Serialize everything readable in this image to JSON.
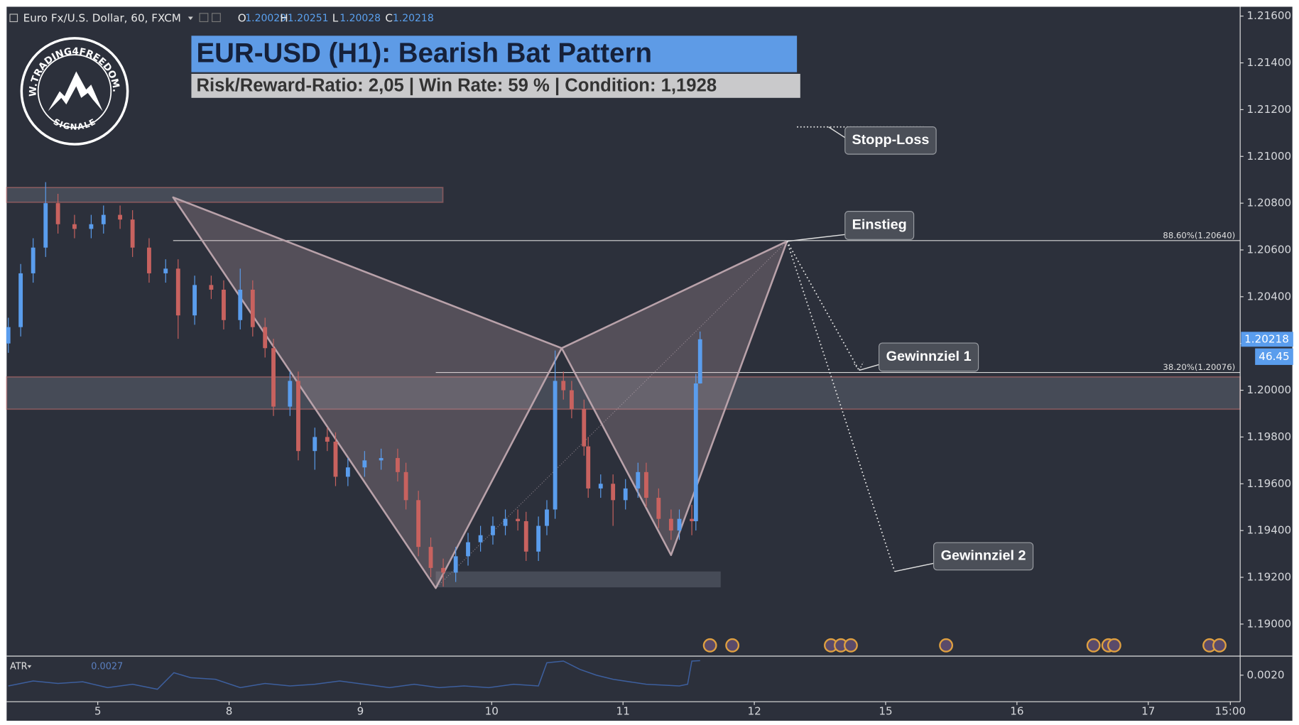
{
  "chart_data": {
    "type": "candlestick",
    "symbol": "Euro Fx/U.S. Dollar, 60, FXCM",
    "title": "EUR-USD (H1): Bearish Bat Pattern",
    "subtitle": "Risk/Reward-Ratio: 2,05 | Win Rate: 59 % | Condition: 1,1928",
    "ohlc_labels": [
      "O",
      "H",
      "L",
      "C"
    ],
    "x": [
      -0.681,
      -0.587,
      -0.492,
      -0.397,
      -0.303,
      -0.177,
      -0.05,
      0.044,
      0.17,
      0.265,
      0.391,
      0.517,
      0.612,
      0.738,
      0.864,
      0.959,
      1.085,
      1.18,
      1.274,
      1.338,
      1.464,
      1.527,
      1.653,
      1.748,
      1.811,
      1.905,
      2.032,
      2.158,
      2.284,
      2.347,
      2.442,
      2.536,
      2.631,
      2.726,
      2.82,
      2.915,
      3.009,
      3.104,
      3.199,
      3.262,
      3.356,
      3.42,
      3.483,
      3.546,
      3.609,
      3.703,
      3.735,
      3.83,
      3.924,
      4.019,
      4.114,
      4.177,
      4.271,
      4.366,
      4.429,
      4.524,
      4.555,
      4.587
    ],
    "open": [
      1.202,
      1.2027,
      1.205,
      1.2061,
      1.208,
      1.2071,
      1.2069,
      1.2071,
      1.2075,
      1.2073,
      1.2061,
      1.205,
      1.2052,
      1.2032,
      1.2045,
      1.2043,
      1.203,
      1.2043,
      1.2027,
      1.2018,
      1.1993,
      1.2004,
      1.1974,
      1.198,
      1.1978,
      1.1963,
      1.1967,
      1.197,
      1.1971,
      1.1965,
      1.1953,
      1.1933,
      1.1924,
      1.1922,
      1.1929,
      1.1935,
      1.1938,
      1.1942,
      1.1945,
      1.1944,
      1.1931,
      1.1942,
      1.1949,
      1.2004,
      1.2,
      1.1992,
      1.1976,
      1.1958,
      1.196,
      1.1953,
      1.1958,
      1.1965,
      1.1954,
      1.1945,
      1.194,
      1.1945,
      1.1944,
      1.20029
    ],
    "high": [
      1.2031,
      1.2054,
      1.2065,
      1.2089,
      1.2084,
      1.2075,
      1.2075,
      1.2079,
      1.2079,
      1.2077,
      1.2065,
      1.2056,
      1.2056,
      1.2049,
      1.2049,
      1.2047,
      1.2052,
      1.2047,
      1.2031,
      1.2022,
      1.2008,
      1.2008,
      1.1984,
      1.1984,
      1.1982,
      1.1971,
      1.1974,
      1.1975,
      1.1975,
      1.1969,
      1.1957,
      1.1937,
      1.1928,
      1.1933,
      1.1939,
      1.1942,
      1.1946,
      1.1949,
      1.1949,
      1.1948,
      1.1946,
      1.1953,
      1.2017,
      1.2008,
      1.2004,
      1.1996,
      1.198,
      1.1964,
      1.1964,
      1.1962,
      1.1969,
      1.1969,
      1.1958,
      1.1949,
      1.1949,
      1.1951,
      1.2007,
      1.20251
    ],
    "low": [
      1.2016,
      1.2023,
      1.2046,
      1.2057,
      1.2067,
      1.2065,
      1.2065,
      1.2067,
      1.2069,
      1.2057,
      1.2046,
      1.2046,
      1.2022,
      1.2028,
      1.2039,
      1.2026,
      1.2026,
      1.2023,
      1.2014,
      1.1989,
      1.1989,
      1.197,
      1.1966,
      1.1974,
      1.1959,
      1.1959,
      1.1963,
      1.1966,
      1.1961,
      1.1949,
      1.1929,
      1.192,
      1.1916,
      1.1918,
      1.1925,
      1.1931,
      1.1934,
      1.1938,
      1.194,
      1.1927,
      1.1927,
      1.1938,
      1.1945,
      1.1996,
      1.1988,
      1.1972,
      1.1954,
      1.1954,
      1.1942,
      1.1949,
      1.1954,
      1.195,
      1.1941,
      1.1936,
      1.1936,
      1.1938,
      1.194,
      1.20028
    ],
    "close": [
      1.2027,
      1.205,
      1.2061,
      1.208,
      1.2071,
      1.2069,
      1.2071,
      1.2075,
      1.2073,
      1.2061,
      1.205,
      1.2052,
      1.2032,
      1.2045,
      1.2043,
      1.203,
      1.2043,
      1.2027,
      1.2018,
      1.1993,
      1.2004,
      1.1974,
      1.198,
      1.1978,
      1.1963,
      1.1967,
      1.197,
      1.1971,
      1.1965,
      1.1953,
      1.1933,
      1.1924,
      1.1922,
      1.1929,
      1.1935,
      1.1938,
      1.1942,
      1.1945,
      1.1944,
      1.1931,
      1.1942,
      1.1949,
      1.2004,
      1.2,
      1.1992,
      1.1976,
      1.1958,
      1.196,
      1.1953,
      1.1958,
      1.1965,
      1.1954,
      1.1945,
      1.194,
      1.1945,
      1.1944,
      1.20029,
      1.20218
    ],
    "up_color": "#5a9ded",
    "down_color": "#c8625f",
    "xlim": [
      -0.694,
      8.7
    ],
    "xticks": [
      {
        "value": 0,
        "label": "5"
      },
      {
        "value": 1,
        "label": "8"
      },
      {
        "value": 2,
        "label": "9"
      },
      {
        "value": 3,
        "label": "10"
      },
      {
        "value": 4,
        "label": "11"
      },
      {
        "value": 5,
        "label": "12"
      },
      {
        "value": 6,
        "label": "15"
      },
      {
        "value": 7,
        "label": "16"
      },
      {
        "value": 8,
        "label": "17"
      },
      {
        "value": 8.625,
        "label": "15:00"
      }
    ],
    "ylim": [
      1.1887,
      1.2164
    ],
    "yticks": [
      {
        "value": 1.19,
        "label": "1.19000"
      },
      {
        "value": 1.192,
        "label": "1.19200"
      },
      {
        "value": 1.194,
        "label": "1.19400"
      },
      {
        "value": 1.196,
        "label": "1.19600"
      },
      {
        "value": 1.198,
        "label": "1.19800"
      },
      {
        "value": 1.2,
        "label": "1.20000"
      },
      {
        "value": 1.202,
        "label": "1.20200"
      },
      {
        "value": 1.204,
        "label": "1.20400"
      },
      {
        "value": 1.206,
        "label": "1.20600"
      },
      {
        "value": 1.208,
        "label": "1.20800"
      },
      {
        "value": 1.21,
        "label": "1.21000"
      },
      {
        "value": 1.212,
        "label": "1.21200"
      },
      {
        "value": 1.214,
        "label": "1.21400"
      },
      {
        "value": 1.216,
        "label": "1.21600"
      }
    ],
    "zones": [
      {
        "x0": -0.694,
        "x1": 2.628,
        "y0": 1.20804,
        "y1": 1.20867
      },
      {
        "x0": -0.694,
        "x1": 8.7,
        "y0": 1.19919,
        "y1": 1.20057
      },
      {
        "x0": 2.574,
        "x1": 4.744,
        "y0": 1.19157,
        "y1": 1.19225
      }
    ],
    "levels": [
      {
        "label": "88.60%(1.20640)",
        "value": 1.2064,
        "x0": 0.574
      },
      {
        "label": "38.20%(1.20076)",
        "value": 1.20076,
        "x0": 2.574
      }
    ],
    "pattern": {
      "x": [
        0.574,
        2.574,
        3.533,
        4.366,
        5.249
      ],
      "y": [
        1.20825,
        1.19154,
        1.2018,
        1.19295,
        1.20637
      ]
    },
    "stop_line": {
      "y": 1.21126,
      "x0": 5.325,
      "x1": 6.29
    },
    "annotations": [
      {
        "text": "Stopp-Loss",
        "x": 5.565,
        "y": 1.21126
      },
      {
        "text": "Einstieg",
        "x": 5.249,
        "y": 1.20637
      },
      {
        "text": "Gewinnziel 1",
        "x": 5.798,
        "y": 1.20085
      },
      {
        "text": "Gewinnziel 2",
        "x": 6.069,
        "y": 1.19225
      }
    ],
    "countdown": "46.45",
    "atr": {
      "name": "ATR",
      "color": "#3d5f9e",
      "x": [
        -0.681,
        -0.492,
        -0.303,
        -0.114,
        0.076,
        0.265,
        0.454,
        0.58,
        0.707,
        0.896,
        1.085,
        1.274,
        1.464,
        1.653,
        1.842,
        2.032,
        2.221,
        2.41,
        2.599,
        2.789,
        2.978,
        3.167,
        3.356,
        3.42,
        3.546,
        3.672,
        3.798,
        3.924,
        4.177,
        4.429,
        4.492,
        4.524,
        4.587
      ],
      "values": [
        0.00148,
        0.00172,
        0.0016,
        0.00168,
        0.0014,
        0.00156,
        0.00132,
        0.00212,
        0.00188,
        0.0018,
        0.0014,
        0.0016,
        0.00148,
        0.00156,
        0.00172,
        0.00156,
        0.0014,
        0.00156,
        0.0014,
        0.00148,
        0.0014,
        0.00156,
        0.00148,
        0.0026,
        0.00268,
        0.00228,
        0.002,
        0.0018,
        0.00156,
        0.00148,
        0.00156,
        0.00268,
        0.0027
      ],
      "y2lim": [
        0.0008,
        0.0028
      ],
      "y2ticks": [
        {
          "value": 0.002,
          "label": "0.0020"
        }
      ]
    },
    "logo": {
      "text": "WWW.TRADING4FREEDOM.COM",
      "sub": "SIGNALE"
    }
  }
}
